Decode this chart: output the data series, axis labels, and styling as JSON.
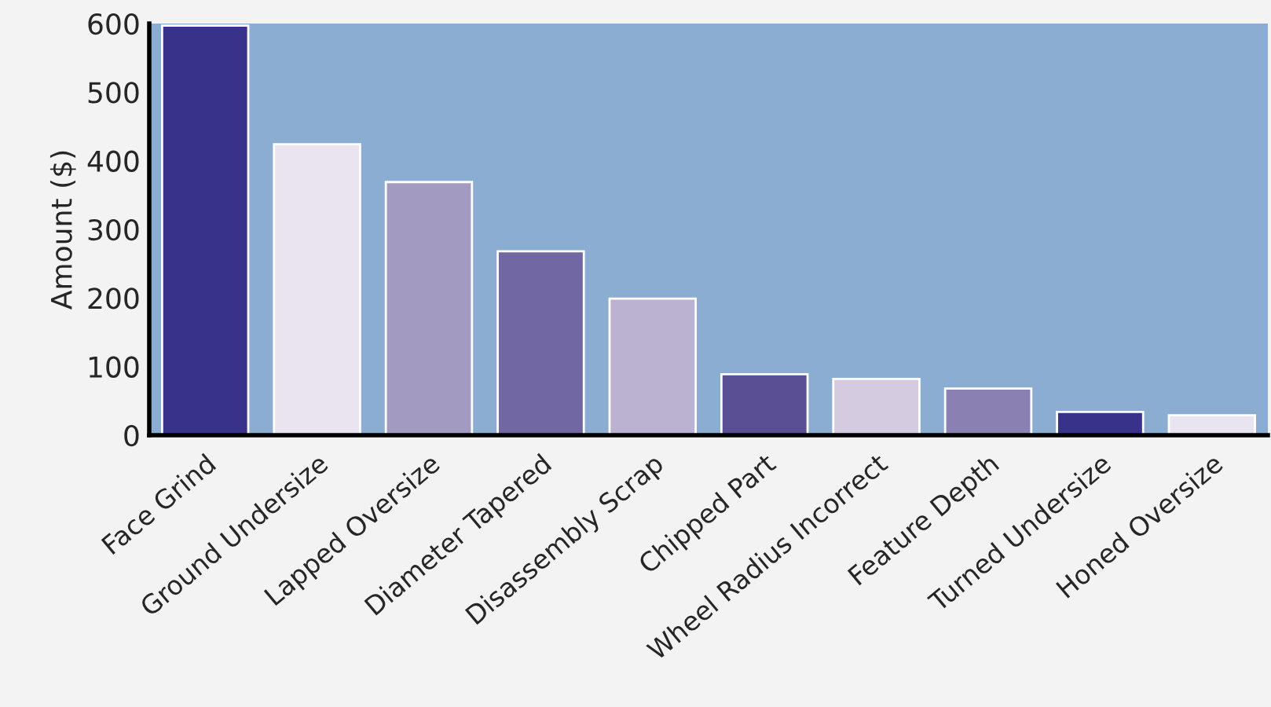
{
  "chart_data": {
    "type": "bar",
    "ylabel": "Amount ($)",
    "categories": [
      "Face Grind",
      "Ground Undersize",
      "Lapped Oversize",
      "Diameter Tapered",
      "Disassembly Scrap",
      "Chipped Part",
      "Wheel Radius Incorrect",
      "Feature Depth",
      "Turned Undersize",
      "Honed Oversize"
    ],
    "values": [
      597,
      424,
      369,
      268,
      199,
      89,
      82,
      68,
      34,
      29
    ],
    "colors": [
      "#38328a",
      "#e9e4f0",
      "#a39ac2",
      "#7167a3",
      "#bbb1d1",
      "#5a4f94",
      "#d4cbe0",
      "#8a80b2",
      "#38328a",
      "#e9e4f0"
    ],
    "ylim": [
      0,
      600
    ],
    "yticks": [
      0,
      100,
      200,
      300,
      400,
      500,
      600
    ],
    "grid": false,
    "legend": false
  }
}
